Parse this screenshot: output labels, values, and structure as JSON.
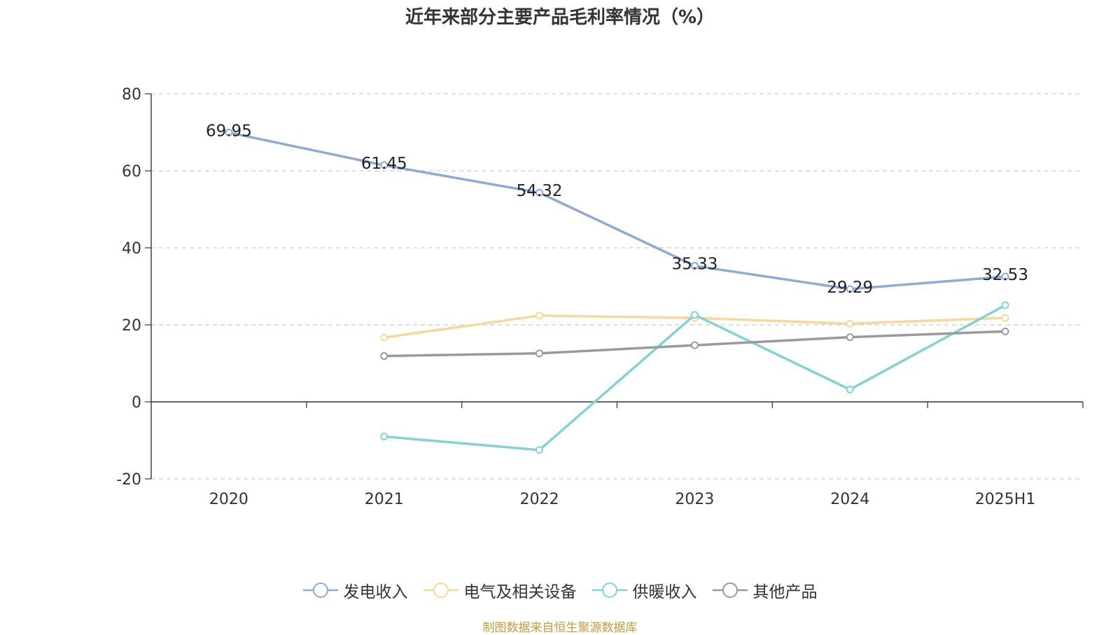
{
  "title": "近年来部分主要产品毛利率情况（%）",
  "source_note": "制图数据来自恒生聚源数据库",
  "chart_data": {
    "type": "line",
    "title": "近年来部分主要产品毛利率情况（%）",
    "categories": [
      "2020",
      "2021",
      "2022",
      "2023",
      "2024",
      "2025H1"
    ],
    "ylim": [
      -20,
      80
    ],
    "yticks": [
      -20,
      0,
      20,
      40,
      60,
      80
    ],
    "grid": true,
    "legend_position": "bottom",
    "series": [
      {
        "name": "发电收入",
        "color": "#8eaad8",
        "values": [
          69.95,
          61.45,
          54.32,
          35.33,
          29.29,
          32.53
        ],
        "show_labels": true
      },
      {
        "name": "电气及相关设备",
        "color": "#f9d897",
        "values": [
          null,
          16.7,
          22.4,
          21.8,
          20.3,
          21.8
        ],
        "show_labels": false
      },
      {
        "name": "供暖收入",
        "color": "#83d3d4",
        "values": [
          null,
          -9.0,
          -12.5,
          22.6,
          3.2,
          25.1
        ],
        "show_labels": false
      },
      {
        "name": "其他产品",
        "color": "#9a9a9a",
        "values": [
          null,
          11.9,
          12.6,
          14.7,
          16.8,
          18.3
        ],
        "show_labels": false
      }
    ]
  }
}
